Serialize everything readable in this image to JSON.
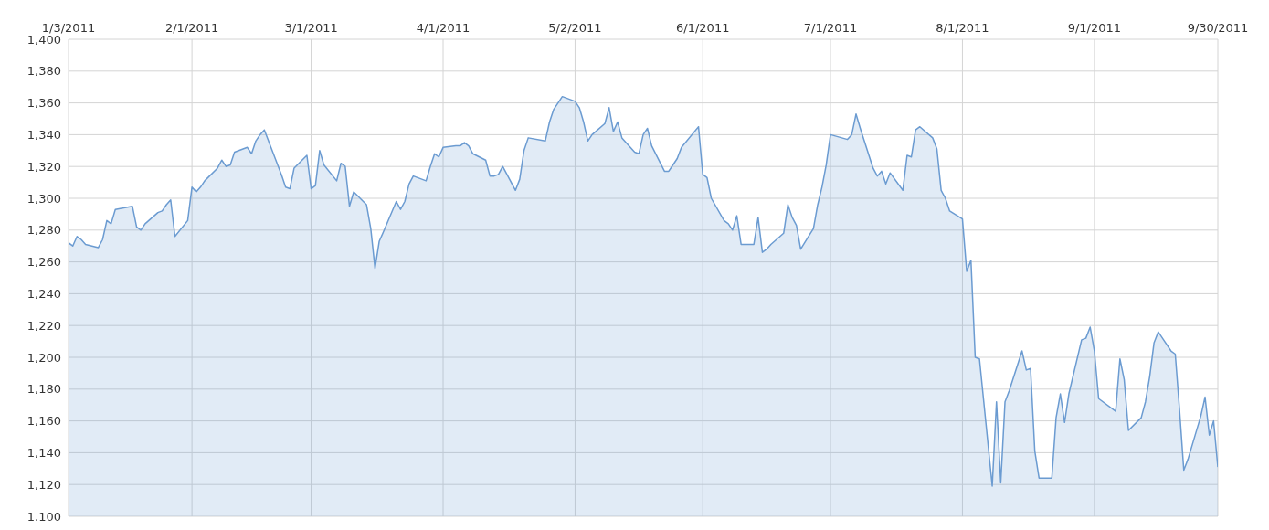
{
  "chart_data": {
    "type": "area",
    "grid": true,
    "marker": "none",
    "xlim": [
      "2011-01-03",
      "2011-09-30"
    ],
    "xticks": [
      {
        "value": "2011-01-03",
        "label": "1/3/2011"
      },
      {
        "value": "2011-02-01",
        "label": "2/1/2011"
      },
      {
        "value": "2011-03-01",
        "label": "3/1/2011"
      },
      {
        "value": "2011-04-01",
        "label": "4/1/2011"
      },
      {
        "value": "2011-05-02",
        "label": "5/2/2011"
      },
      {
        "value": "2011-06-01",
        "label": "6/1/2011"
      },
      {
        "value": "2011-07-01",
        "label": "7/1/2011"
      },
      {
        "value": "2011-08-01",
        "label": "8/1/2011"
      },
      {
        "value": "2011-09-01",
        "label": "9/1/2011"
      },
      {
        "value": "2011-09-30",
        "label": "9/30/2011"
      }
    ],
    "ylim": [
      1100,
      1400
    ],
    "yticks": [
      {
        "value": 1100,
        "label": "1,100"
      },
      {
        "value": 1120,
        "label": "1,120"
      },
      {
        "value": 1140,
        "label": "1,140"
      },
      {
        "value": 1160,
        "label": "1,160"
      },
      {
        "value": 1180,
        "label": "1,180"
      },
      {
        "value": 1200,
        "label": "1,200"
      },
      {
        "value": 1220,
        "label": "1,220"
      },
      {
        "value": 1240,
        "label": "1,240"
      },
      {
        "value": 1260,
        "label": "1,260"
      },
      {
        "value": 1280,
        "label": "1,280"
      },
      {
        "value": 1300,
        "label": "1,300"
      },
      {
        "value": 1320,
        "label": "1,320"
      },
      {
        "value": 1340,
        "label": "1,340"
      },
      {
        "value": 1360,
        "label": "1,360"
      },
      {
        "value": 1380,
        "label": "1,380"
      },
      {
        "value": 1400,
        "label": "1,400"
      }
    ],
    "x": [
      "2011-01-03",
      "2011-01-04",
      "2011-01-05",
      "2011-01-06",
      "2011-01-07",
      "2011-01-10",
      "2011-01-11",
      "2011-01-12",
      "2011-01-13",
      "2011-01-14",
      "2011-01-18",
      "2011-01-19",
      "2011-01-20",
      "2011-01-21",
      "2011-01-24",
      "2011-01-25",
      "2011-01-26",
      "2011-01-27",
      "2011-01-28",
      "2011-01-31",
      "2011-02-01",
      "2011-02-02",
      "2011-02-03",
      "2011-02-04",
      "2011-02-07",
      "2011-02-08",
      "2011-02-09",
      "2011-02-10",
      "2011-02-11",
      "2011-02-14",
      "2011-02-15",
      "2011-02-16",
      "2011-02-17",
      "2011-02-18",
      "2011-02-22",
      "2011-02-23",
      "2011-02-24",
      "2011-02-25",
      "2011-02-28",
      "2011-03-01",
      "2011-03-02",
      "2011-03-03",
      "2011-03-04",
      "2011-03-07",
      "2011-03-08",
      "2011-03-09",
      "2011-03-10",
      "2011-03-11",
      "2011-03-14",
      "2011-03-15",
      "2011-03-16",
      "2011-03-17",
      "2011-03-18",
      "2011-03-21",
      "2011-03-22",
      "2011-03-23",
      "2011-03-24",
      "2011-03-25",
      "2011-03-28",
      "2011-03-29",
      "2011-03-30",
      "2011-03-31",
      "2011-04-01",
      "2011-04-04",
      "2011-04-05",
      "2011-04-06",
      "2011-04-07",
      "2011-04-08",
      "2011-04-11",
      "2011-04-12",
      "2011-04-13",
      "2011-04-14",
      "2011-04-15",
      "2011-04-18",
      "2011-04-19",
      "2011-04-20",
      "2011-04-21",
      "2011-04-25",
      "2011-04-26",
      "2011-04-27",
      "2011-04-28",
      "2011-04-29",
      "2011-05-02",
      "2011-05-03",
      "2011-05-04",
      "2011-05-05",
      "2011-05-06",
      "2011-05-09",
      "2011-05-10",
      "2011-05-11",
      "2011-05-12",
      "2011-05-13",
      "2011-05-16",
      "2011-05-17",
      "2011-05-18",
      "2011-05-19",
      "2011-05-20",
      "2011-05-23",
      "2011-05-24",
      "2011-05-25",
      "2011-05-26",
      "2011-05-27",
      "2011-05-31",
      "2011-06-01",
      "2011-06-02",
      "2011-06-03",
      "2011-06-06",
      "2011-06-07",
      "2011-06-08",
      "2011-06-09",
      "2011-06-10",
      "2011-06-13",
      "2011-06-14",
      "2011-06-15",
      "2011-06-16",
      "2011-06-17",
      "2011-06-20",
      "2011-06-21",
      "2011-06-22",
      "2011-06-23",
      "2011-06-24",
      "2011-06-27",
      "2011-06-28",
      "2011-06-29",
      "2011-06-30",
      "2011-07-01",
      "2011-07-05",
      "2011-07-06",
      "2011-07-07",
      "2011-07-08",
      "2011-07-11",
      "2011-07-12",
      "2011-07-13",
      "2011-07-14",
      "2011-07-15",
      "2011-07-18",
      "2011-07-19",
      "2011-07-20",
      "2011-07-21",
      "2011-07-22",
      "2011-07-25",
      "2011-07-26",
      "2011-07-27",
      "2011-07-28",
      "2011-07-29",
      "2011-08-01",
      "2011-08-02",
      "2011-08-03",
      "2011-08-04",
      "2011-08-05",
      "2011-08-08",
      "2011-08-09",
      "2011-08-10",
      "2011-08-11",
      "2011-08-12",
      "2011-08-15",
      "2011-08-16",
      "2011-08-17",
      "2011-08-18",
      "2011-08-19",
      "2011-08-22",
      "2011-08-23",
      "2011-08-24",
      "2011-08-25",
      "2011-08-26",
      "2011-08-29",
      "2011-08-30",
      "2011-08-31",
      "2011-09-01",
      "2011-09-02",
      "2011-09-06",
      "2011-09-07",
      "2011-09-08",
      "2011-09-09",
      "2011-09-12",
      "2011-09-13",
      "2011-09-14",
      "2011-09-15",
      "2011-09-16",
      "2011-09-19",
      "2011-09-20",
      "2011-09-21",
      "2011-09-22",
      "2011-09-23",
      "2011-09-26",
      "2011-09-27",
      "2011-09-28",
      "2011-09-29",
      "2011-09-30"
    ],
    "series": [
      {
        "color": "#6b9bd1",
        "values": [
          1272,
          1270,
          1276,
          1274,
          1271,
          1269,
          1274,
          1286,
          1284,
          1293,
          1295,
          1282,
          1280,
          1284,
          1291,
          1292,
          1296,
          1299,
          1276,
          1286,
          1307,
          1304,
          1307,
          1311,
          1319,
          1324,
          1320,
          1321,
          1329,
          1332,
          1328,
          1336,
          1340,
          1343,
          1315,
          1307,
          1306,
          1319,
          1327,
          1306,
          1308,
          1330,
          1321,
          1311,
          1322,
          1320,
          1295,
          1304,
          1296,
          1281,
          1256,
          1273,
          1279,
          1298,
          1293,
          1298,
          1309,
          1314,
          1311,
          1320,
          1328,
          1326,
          1332,
          1333,
          1333,
          1335,
          1333,
          1328,
          1324,
          1314,
          1314,
          1315,
          1320,
          1305,
          1312,
          1330,
          1338,
          1336,
          1348,
          1356,
          1360,
          1364,
          1361,
          1357,
          1348,
          1336,
          1340,
          1347,
          1357,
          1342,
          1348,
          1338,
          1329,
          1328,
          1340,
          1344,
          1333,
          1317,
          1317,
          1321,
          1325,
          1332,
          1345,
          1315,
          1313,
          1300,
          1286,
          1284,
          1280,
          1289,
          1271,
          1271,
          1288,
          1266,
          1268,
          1271,
          1278,
          1296,
          1288,
          1283,
          1268,
          1281,
          1296,
          1307,
          1321,
          1340,
          1337,
          1340,
          1353,
          1344,
          1319,
          1314,
          1317,
          1309,
          1316,
          1305,
          1327,
          1326,
          1343,
          1345,
          1338,
          1331,
          1305,
          1300,
          1292,
          1287,
          1254,
          1261,
          1200,
          1199,
          1119,
          1172,
          1121,
          1172,
          1179,
          1204,
          1192,
          1193,
          1141,
          1124,
          1124,
          1162,
          1177,
          1159,
          1177,
          1211,
          1212,
          1219,
          1204,
          1174,
          1166,
          1199,
          1186,
          1154,
          1162,
          1172,
          1188,
          1209,
          1216,
          1204,
          1202,
          1167,
          1129,
          1136,
          1163,
          1175,
          1151,
          1160,
          1131
        ]
      }
    ]
  }
}
